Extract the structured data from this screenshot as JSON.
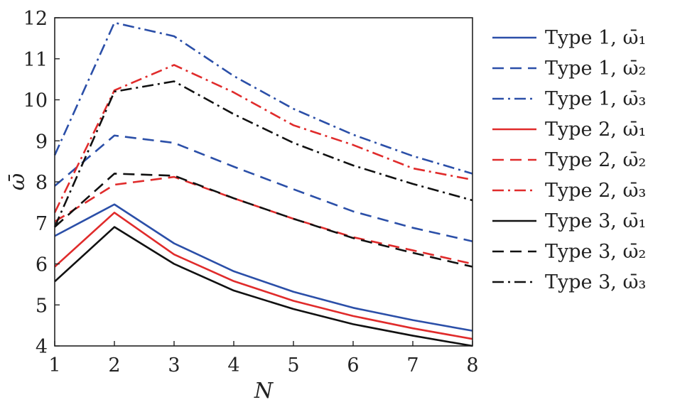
{
  "chart_data": {
    "type": "line",
    "title": "",
    "xlabel": "N",
    "ylabel": "ω̄",
    "xlim": [
      1,
      8
    ],
    "ylim": [
      4,
      12
    ],
    "x": [
      1,
      2,
      3,
      4,
      5,
      6,
      7,
      8
    ],
    "xticks": [
      "1",
      "2",
      "3",
      "4",
      "5",
      "6",
      "7",
      "8"
    ],
    "yticks": [
      "4",
      "5",
      "6",
      "7",
      "8",
      "9",
      "10",
      "11",
      "12"
    ],
    "grid": false,
    "legend_position": "right-outside",
    "series": [
      {
        "name": "Type 1, ω̄₁",
        "color": "#2b4fa8",
        "dash": "solid",
        "values": [
          6.68,
          7.45,
          6.5,
          5.82,
          5.32,
          4.93,
          4.63,
          4.37
        ]
      },
      {
        "name": "Type 1, ω̄₂",
        "color": "#2b4fa8",
        "dash": "dashed",
        "values": [
          7.9,
          9.13,
          8.95,
          8.37,
          7.82,
          7.28,
          6.88,
          6.55
        ]
      },
      {
        "name": "Type 1, ω̄₃",
        "color": "#2b4fa8",
        "dash": "dashdot",
        "values": [
          8.65,
          11.88,
          11.55,
          10.58,
          9.78,
          9.15,
          8.63,
          8.2
        ]
      },
      {
        "name": "Type 2, ω̄₁",
        "color": "#e02b2b",
        "dash": "solid",
        "values": [
          5.93,
          7.25,
          6.23,
          5.58,
          5.1,
          4.73,
          4.43,
          4.17
        ]
      },
      {
        "name": "Type 2, ω̄₂",
        "color": "#e02b2b",
        "dash": "dashed",
        "values": [
          7.03,
          7.93,
          8.12,
          7.6,
          7.1,
          6.65,
          6.33,
          6.0
        ]
      },
      {
        "name": "Type 2, ω̄₃",
        "color": "#e02b2b",
        "dash": "dashdot",
        "values": [
          7.25,
          10.23,
          10.85,
          10.18,
          9.38,
          8.9,
          8.33,
          8.05
        ]
      },
      {
        "name": "Type 3, ω̄₁",
        "color": "#111111",
        "dash": "solid",
        "values": [
          5.57,
          6.9,
          6.0,
          5.35,
          4.9,
          4.53,
          4.25,
          4.0
        ]
      },
      {
        "name": "Type 3, ω̄₂",
        "color": "#111111",
        "dash": "dashed",
        "values": [
          6.9,
          8.2,
          8.15,
          7.6,
          7.1,
          6.63,
          6.27,
          5.93
        ]
      },
      {
        "name": "Type 3, ω̄₃",
        "color": "#111111",
        "dash": "dashdot",
        "values": [
          6.9,
          10.2,
          10.45,
          9.65,
          8.95,
          8.4,
          7.95,
          7.55
        ]
      }
    ]
  }
}
